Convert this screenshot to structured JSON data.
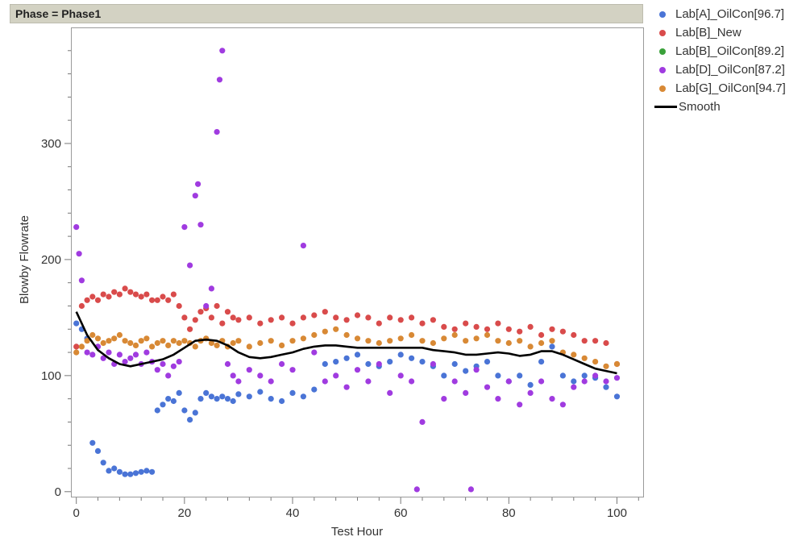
{
  "header": {
    "title": "Phase = Phase1"
  },
  "chart_data": {
    "type": "scatter",
    "xlabel": "Test Hour",
    "ylabel": "Blowby Flowrate",
    "xlim": [
      -1,
      105
    ],
    "ylim": [
      -5,
      400
    ],
    "x_ticks": [
      0,
      20,
      40,
      60,
      80,
      100
    ],
    "y_ticks": [
      0,
      100,
      200,
      300
    ],
    "legend_position": "top-right",
    "grid": false,
    "series": [
      {
        "name": "Lab[A]_OilCon[96.7]",
        "color": "#4a74d6",
        "x": [
          0,
          1,
          2,
          3,
          4,
          5,
          6,
          7,
          8,
          9,
          10,
          11,
          12,
          13,
          14,
          15,
          16,
          17,
          18,
          19,
          20,
          21,
          22,
          23,
          24,
          25,
          26,
          27,
          28,
          29,
          30,
          32,
          34,
          36,
          38,
          40,
          42,
          44,
          46,
          48,
          50,
          52,
          54,
          56,
          58,
          60,
          62,
          64,
          66,
          68,
          70,
          72,
          74,
          76,
          78,
          80,
          82,
          84,
          86,
          88,
          90,
          92,
          94,
          96,
          98,
          100
        ],
        "y": [
          145,
          140,
          132,
          42,
          35,
          25,
          18,
          20,
          17,
          15,
          15,
          16,
          17,
          18,
          17,
          70,
          75,
          80,
          78,
          85,
          70,
          62,
          68,
          80,
          85,
          82,
          80,
          82,
          80,
          78,
          84,
          82,
          86,
          80,
          78,
          85,
          82,
          88,
          110,
          112,
          115,
          118,
          110,
          108,
          112,
          118,
          115,
          112,
          108,
          100,
          110,
          104,
          108,
          112,
          100,
          95,
          100,
          92,
          112,
          125,
          100,
          95,
          100,
          98,
          90,
          82
        ]
      },
      {
        "name": "Lab[B]_New",
        "color": "#d94b4b",
        "x": [
          0,
          1,
          2,
          3,
          4,
          5,
          6,
          7,
          8,
          9,
          10,
          11,
          12,
          13,
          14,
          15,
          16,
          17,
          18,
          19,
          20,
          21,
          22,
          23,
          24,
          25,
          26,
          27,
          28,
          29,
          30,
          32,
          34,
          36,
          38,
          40,
          42,
          44,
          46,
          48,
          50,
          52,
          54,
          56,
          58,
          60,
          62,
          64,
          66,
          68,
          70,
          72,
          74,
          76,
          78,
          80,
          82,
          84,
          86,
          88,
          90,
          92,
          94,
          96,
          98,
          100
        ],
        "y": [
          125,
          160,
          165,
          168,
          165,
          170,
          168,
          172,
          170,
          175,
          172,
          170,
          168,
          170,
          165,
          165,
          168,
          165,
          170,
          160,
          150,
          140,
          148,
          155,
          158,
          150,
          160,
          145,
          155,
          150,
          148,
          150,
          145,
          148,
          150,
          145,
          150,
          152,
          155,
          150,
          148,
          152,
          150,
          145,
          150,
          148,
          150,
          145,
          148,
          142,
          140,
          145,
          142,
          140,
          145,
          140,
          138,
          142,
          135,
          140,
          138,
          135,
          130,
          130,
          128,
          110
        ]
      },
      {
        "name": "Lab[B]_OilCon[89.2]",
        "color": "#3aa13a",
        "x": [],
        "y": []
      },
      {
        "name": "Lab[D]_OilCon[87.2]",
        "color": "#a03be0",
        "x": [
          0,
          0.5,
          1,
          2,
          3,
          4,
          5,
          6,
          7,
          8,
          9,
          10,
          11,
          12,
          13,
          14,
          15,
          16,
          17,
          18,
          19,
          20,
          21,
          22,
          22.5,
          23,
          24,
          25,
          26,
          26.5,
          27,
          28,
          29,
          30,
          32,
          34,
          36,
          38,
          40,
          42,
          44,
          46,
          48,
          50,
          52,
          54,
          56,
          58,
          60,
          62,
          63,
          64,
          66,
          68,
          70,
          72,
          73,
          74,
          76,
          78,
          80,
          82,
          84,
          86,
          88,
          90,
          92,
          94,
          96,
          98,
          100
        ],
        "y": [
          228,
          205,
          182,
          120,
          118,
          125,
          115,
          120,
          110,
          118,
          112,
          115,
          118,
          110,
          120,
          112,
          105,
          110,
          100,
          108,
          112,
          228,
          195,
          255,
          265,
          230,
          160,
          175,
          310,
          355,
          380,
          110,
          100,
          95,
          105,
          100,
          95,
          110,
          105,
          212,
          120,
          95,
          100,
          90,
          105,
          95,
          110,
          85,
          100,
          95,
          2,
          60,
          110,
          80,
          95,
          85,
          2,
          105,
          90,
          80,
          95,
          75,
          85,
          95,
          80,
          75,
          90,
          95,
          100,
          95,
          98
        ]
      },
      {
        "name": "Lab[G]_OilCon[94.7]",
        "color": "#d88935",
        "x": [
          0,
          1,
          2,
          3,
          4,
          5,
          6,
          7,
          8,
          9,
          10,
          11,
          12,
          13,
          14,
          15,
          16,
          17,
          18,
          19,
          20,
          21,
          22,
          23,
          24,
          25,
          26,
          27,
          28,
          29,
          30,
          32,
          34,
          36,
          38,
          40,
          42,
          44,
          46,
          48,
          50,
          52,
          54,
          56,
          58,
          60,
          62,
          64,
          66,
          68,
          70,
          72,
          74,
          76,
          78,
          80,
          82,
          84,
          86,
          88,
          90,
          92,
          94,
          96,
          98,
          100
        ],
        "y": [
          120,
          125,
          130,
          135,
          132,
          128,
          130,
          132,
          135,
          130,
          128,
          126,
          130,
          132,
          125,
          128,
          130,
          126,
          130,
          128,
          130,
          128,
          125,
          130,
          132,
          128,
          126,
          130,
          125,
          128,
          130,
          125,
          128,
          130,
          126,
          130,
          132,
          135,
          138,
          140,
          135,
          132,
          130,
          128,
          130,
          132,
          135,
          130,
          128,
          132,
          135,
          130,
          132,
          135,
          130,
          128,
          130,
          125,
          128,
          130,
          120,
          118,
          115,
          112,
          108,
          110
        ]
      }
    ],
    "smooth": {
      "name": "Smooth",
      "color": "#000000",
      "x": [
        0,
        2,
        4,
        6,
        8,
        10,
        12,
        14,
        16,
        18,
        20,
        22,
        24,
        26,
        28,
        30,
        32,
        34,
        36,
        38,
        40,
        42,
        44,
        46,
        48,
        50,
        52,
        54,
        56,
        58,
        60,
        62,
        64,
        66,
        68,
        70,
        72,
        74,
        76,
        78,
        80,
        82,
        84,
        86,
        88,
        90,
        92,
        94,
        96,
        98,
        100
      ],
      "y": [
        155,
        135,
        122,
        115,
        110,
        108,
        110,
        112,
        114,
        118,
        124,
        130,
        131,
        130,
        126,
        120,
        116,
        115,
        116,
        118,
        120,
        123,
        125,
        126,
        126,
        125,
        124,
        124,
        124,
        124,
        124,
        124,
        124,
        122,
        121,
        120,
        118,
        118,
        119,
        120,
        119,
        117,
        118,
        121,
        121,
        118,
        114,
        110,
        106,
        104,
        102
      ]
    }
  }
}
